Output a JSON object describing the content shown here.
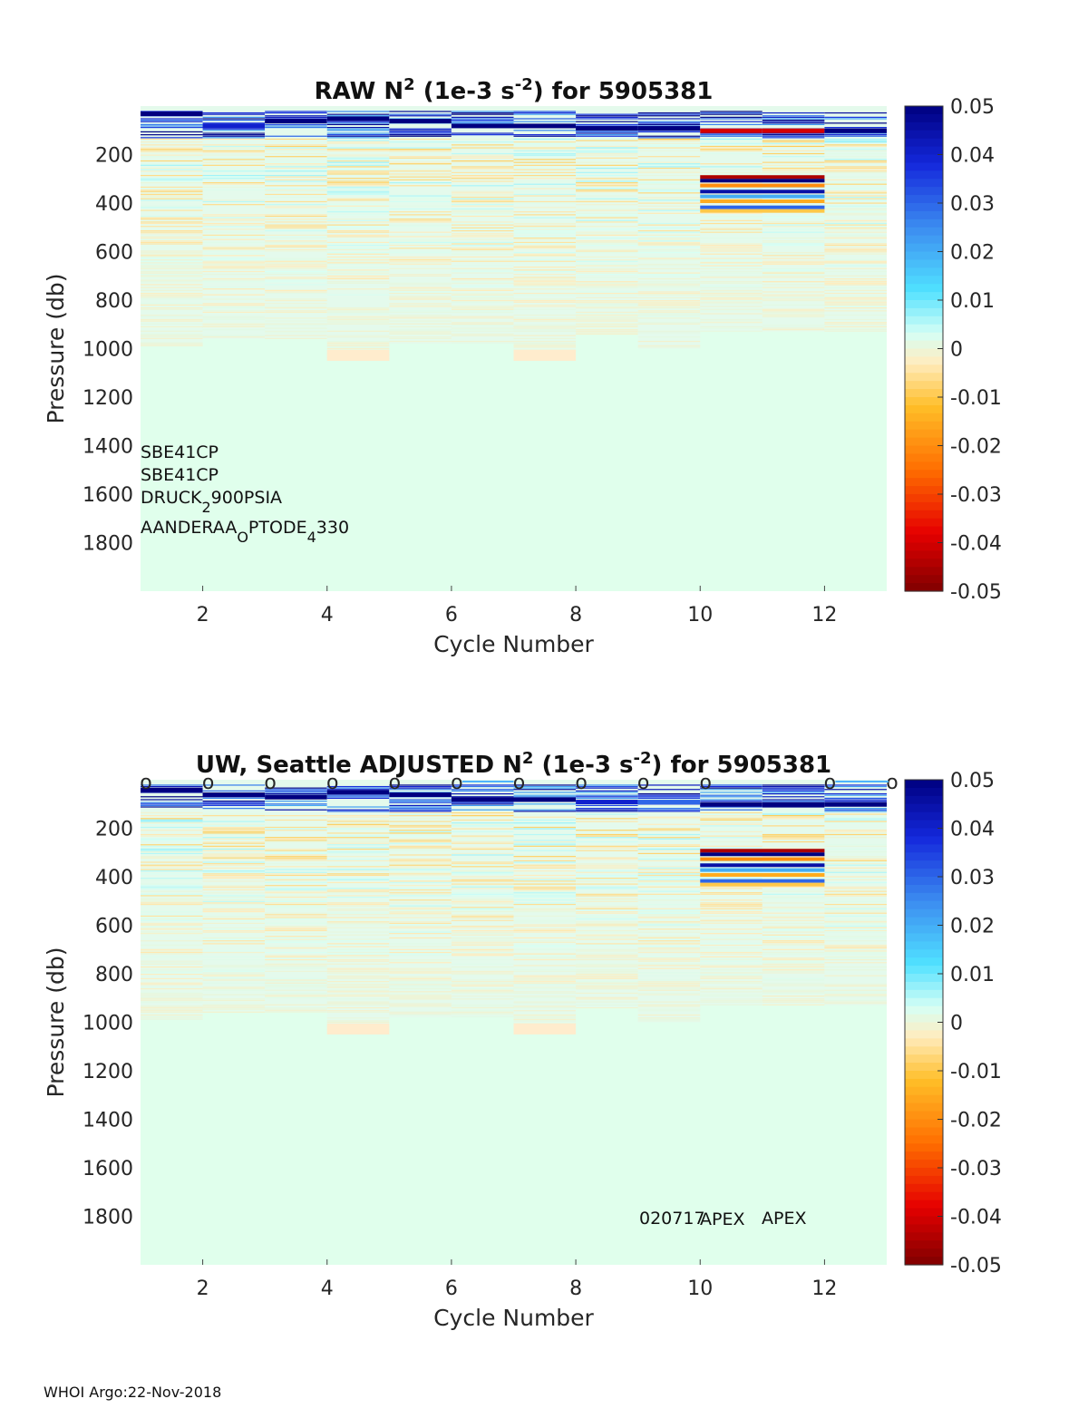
{
  "footer": "WHOI Argo:22-Nov-2018",
  "colorbar": {
    "min": -0.05,
    "max": 0.05,
    "ticks": [
      "0.05",
      "0.04",
      "0.03",
      "0.02",
      "0.01",
      "0",
      "-0.01",
      "-0.02",
      "-0.03",
      "-0.04",
      "-0.05"
    ]
  },
  "chart_data": [
    {
      "type": "heatmap",
      "title_parts": [
        "RAW N",
        "2",
        " (1e-3 s",
        "-2",
        ") for 5905381"
      ],
      "xlabel": "Cycle Number",
      "ylabel": "Pressure (db)",
      "x_ticks": [
        "2",
        "4",
        "6",
        "8",
        "10",
        "12"
      ],
      "y_ticks": [
        "200",
        "400",
        "600",
        "800",
        "1000",
        "1200",
        "1400",
        "1600",
        "1800"
      ],
      "xlim": [
        1,
        13
      ],
      "ylim": [
        0,
        2000
      ],
      "cycles": [
        1,
        2,
        3,
        4,
        5,
        6,
        7,
        8,
        9,
        10,
        11,
        12
      ],
      "max_pressure": [
        990,
        960,
        960,
        1050,
        980,
        980,
        1050,
        940,
        1000,
        930,
        930,
        930
      ],
      "surface_top": [
        20,
        20,
        20,
        20,
        20,
        10,
        20,
        20,
        20,
        20,
        20,
        20
      ],
      "strong_layer": [
        {
          "cycle": 1,
          "p": 30,
          "v": 0.05
        },
        {
          "cycle": 2,
          "p": 80,
          "v": 0.04
        },
        {
          "cycle": 3,
          "p": 60,
          "v": 0.05
        },
        {
          "cycle": 4,
          "p": 50,
          "v": 0.05
        },
        {
          "cycle": 5,
          "p": 60,
          "v": 0.05
        },
        {
          "cycle": 6,
          "p": 80,
          "v": 0.05
        },
        {
          "cycle": 7,
          "p": 80,
          "v": 0.05
        },
        {
          "cycle": 8,
          "p": 90,
          "v": 0.05
        },
        {
          "cycle": 9,
          "p": 90,
          "v": 0.05
        },
        {
          "cycle": 10,
          "p": 100,
          "v": -0.04
        },
        {
          "cycle": 11,
          "p": 100,
          "v": -0.04
        },
        {
          "cycle": 12,
          "p": 100,
          "v": 0.05
        }
      ],
      "annotations": [
        {
          "id": "sensor-ctd-1",
          "parts": [
            "SBE41CP"
          ]
        },
        {
          "id": "sensor-ctd-2",
          "parts": [
            "SBE41CP"
          ]
        },
        {
          "id": "sensor-pressure",
          "parts": [
            "DRUCK",
            "2",
            "900PSIA"
          ]
        },
        {
          "id": "sensor-oxygen",
          "parts": [
            "AANDERAA",
            "O",
            "PTODE",
            "4",
            "330"
          ]
        }
      ]
    },
    {
      "type": "heatmap",
      "title_parts": [
        "UW, Seattle  ADJUSTED N",
        "2",
        " (1e-3 s",
        "-2",
        ") for 5905381"
      ],
      "xlabel": "Cycle Number",
      "ylabel": "Pressure (db)",
      "x_ticks": [
        "2",
        "4",
        "6",
        "8",
        "10",
        "12"
      ],
      "y_ticks": [
        "200",
        "400",
        "600",
        "800",
        "1000",
        "1200",
        "1400",
        "1600",
        "1800"
      ],
      "xlim": [
        1,
        13
      ],
      "ylim": [
        0,
        2000
      ],
      "cycles": [
        1,
        2,
        3,
        4,
        5,
        6,
        7,
        8,
        9,
        10,
        11,
        12
      ],
      "max_pressure": [
        990,
        960,
        960,
        1050,
        980,
        980,
        1050,
        940,
        1000,
        930,
        930,
        930
      ],
      "surface_markers": [
        1,
        2,
        3,
        4,
        5,
        6,
        7,
        8,
        9,
        10,
        12,
        13
      ],
      "marker_glyph": "o",
      "strong_layer": [
        {
          "cycle": 1,
          "p": 40,
          "v": 0.05
        },
        {
          "cycle": 2,
          "p": 60,
          "v": 0.05
        },
        {
          "cycle": 3,
          "p": 70,
          "v": 0.05
        },
        {
          "cycle": 4,
          "p": 50,
          "v": 0.05
        },
        {
          "cycle": 5,
          "p": 60,
          "v": 0.05
        },
        {
          "cycle": 6,
          "p": 80,
          "v": 0.05
        },
        {
          "cycle": 7,
          "p": 80,
          "v": 0.05
        },
        {
          "cycle": 8,
          "p": 90,
          "v": 0.04
        },
        {
          "cycle": 9,
          "p": 90,
          "v": 0.03
        },
        {
          "cycle": 10,
          "p": 100,
          "v": 0.05
        },
        {
          "cycle": 11,
          "p": 100,
          "v": 0.05
        },
        {
          "cycle": 12,
          "p": 100,
          "v": 0.05
        }
      ],
      "annotations": [
        {
          "id": "float-id",
          "parts": [
            "020717"
          ]
        },
        {
          "id": "float-type-large",
          "parts": [
            "APEX"
          ]
        },
        {
          "id": "float-type-small",
          "parts": [
            "APEX"
          ]
        }
      ]
    }
  ]
}
